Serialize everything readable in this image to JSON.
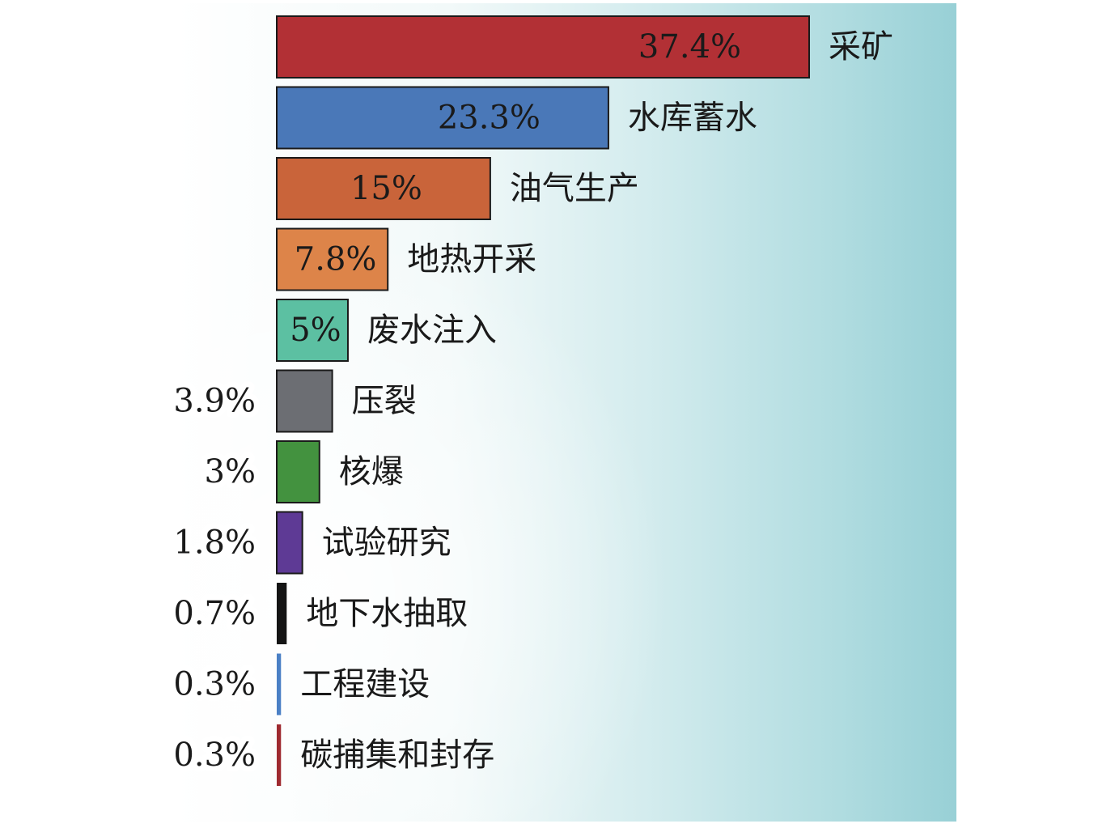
{
  "chart_data": {
    "type": "bar",
    "orientation": "horizontal",
    "categories": [
      "采矿",
      "水库蓄水",
      "油气生产",
      "地热开采",
      "废水注入",
      "压裂",
      "核爆",
      "试验研究",
      "地下水抽取",
      "工程建设",
      "碳捕集和封存"
    ],
    "values": [
      37.4,
      23.3,
      15,
      7.8,
      5,
      3.9,
      3,
      1.8,
      0.7,
      0.3,
      0.3
    ],
    "value_labels": [
      "37.4%",
      "23.3%",
      "15%",
      "7.8%",
      "5%",
      "3.9%",
      "3%",
      "1.8%",
      "0.7%",
      "0.3%",
      "0.3%"
    ],
    "colors": [
      "#b23035",
      "#4a78b8",
      "#c9643a",
      "#dd8449",
      "#5cc0a2",
      "#6c6e73",
      "#43923f",
      "#5e3a95",
      "#141414",
      "#4a80c5",
      "#9e2a30"
    ],
    "unit": "%",
    "grid": false,
    "legend": "none"
  }
}
